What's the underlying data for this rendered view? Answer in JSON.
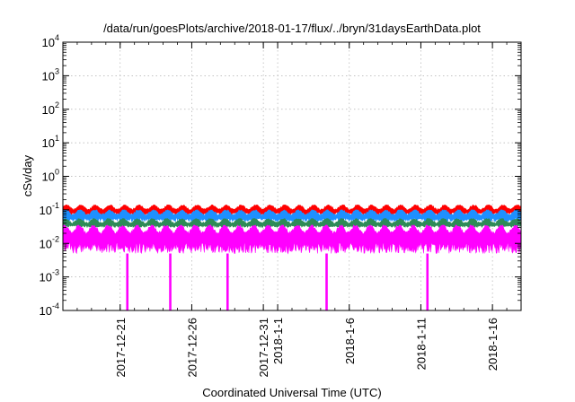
{
  "chart_data": {
    "type": "area",
    "title": "/data/run/goesPlots/archive/2018-01-17/flux/../bryn/31daysEarthData.plot",
    "xlabel": "Coordinated Universal Time (UTC)",
    "ylabel": "cSv/day",
    "yscale": "log",
    "ylim": [
      0.0001,
      10000
    ],
    "xlim": [
      "2017-12-17",
      "2018-01-18"
    ],
    "grid": true,
    "x_ticks": [
      "2017-12-21",
      "2017-12-26",
      "2017-12-31",
      "2018-1-1",
      "2018-1-6",
      "2018-1-11",
      "2018-1-16"
    ],
    "y_ticks": [
      {
        "value": 0.0001,
        "base": "10",
        "exp": "-4"
      },
      {
        "value": 0.001,
        "base": "10",
        "exp": "-3"
      },
      {
        "value": 0.01,
        "base": "10",
        "exp": "-2"
      },
      {
        "value": 0.1,
        "base": "10",
        "exp": "-1"
      },
      {
        "value": 1,
        "base": "10",
        "exp": "0"
      },
      {
        "value": 10,
        "base": "10",
        "exp": "1"
      },
      {
        "value": 100,
        "base": "10",
        "exp": "2"
      },
      {
        "value": 1000,
        "base": "10",
        "exp": "3"
      },
      {
        "value": 10000,
        "base": "10",
        "exp": "4"
      }
    ],
    "series": [
      {
        "color": "#ff0000",
        "typical_level": 0.1,
        "range": [
          0.07,
          0.14
        ]
      },
      {
        "color": "#1e90ff",
        "typical_level": 0.07,
        "range": [
          0.045,
          0.1
        ]
      },
      {
        "color": "#2e8b57",
        "typical_level": 0.04,
        "range": [
          0.03,
          0.055
        ]
      },
      {
        "color": "#ff00ff",
        "typical_level": 0.02,
        "range": [
          0.005,
          0.035
        ]
      }
    ],
    "dropouts": {
      "color": "#ff00ff",
      "dates": [
        "2017-12-21T12:00",
        "2017-12-24T12:00",
        "2017-12-28T12:00",
        "2018-01-04T10:00",
        "2018-01-11T11:00"
      ],
      "min_value": 0.0001
    }
  }
}
